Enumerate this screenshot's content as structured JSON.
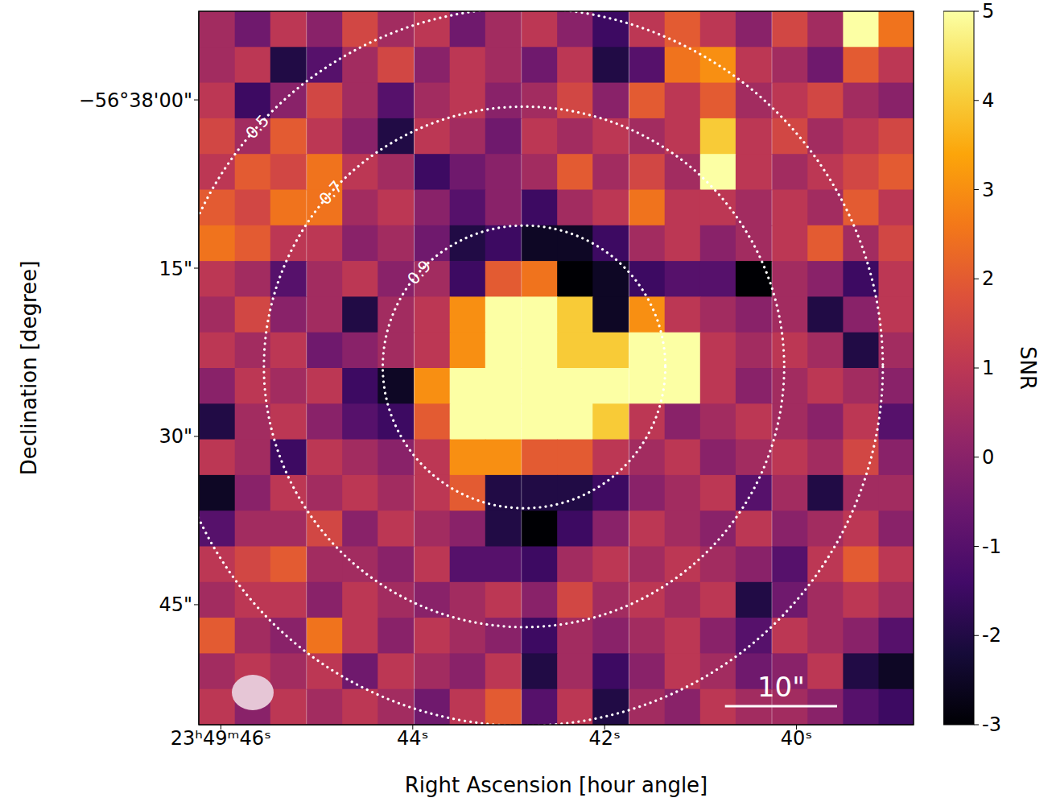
{
  "chart_data": {
    "type": "heatmap",
    "x_label": "Right Ascension [hour angle]",
    "y_label": "Declination [degree]",
    "color": "inferno",
    "xlim": [
      46.23,
      38.78
    ],
    "ylim": [
      55.7,
      -7.9
    ],
    "xticks": [
      {
        "value": 46,
        "label": "23ʰ49ᵐ46ˢ"
      },
      {
        "value": 44,
        "label": "44ˢ"
      },
      {
        "value": 42,
        "label": "42ˢ"
      },
      {
        "value": 40,
        "label": "40ˢ"
      }
    ],
    "yticks": [
      {
        "value": 0,
        "label": "−56°38'00\""
      },
      {
        "value": 15,
        "label": "15\""
      },
      {
        "value": 30,
        "label": "30\""
      },
      {
        "value": 45,
        "label": "45\""
      }
    ],
    "x": [
      46.04,
      45.67,
      45.3,
      44.92,
      44.55,
      44.18,
      43.8,
      43.43,
      43.06,
      42.68,
      42.31,
      41.94,
      41.56,
      41.19,
      40.82,
      40.45,
      40.07,
      39.7,
      39.33,
      38.96
    ],
    "y": [
      -6.31,
      -3.13,
      0.05,
      3.23,
      6.41,
      9.59,
      12.77,
      15.95,
      19.13,
      22.31,
      25.49,
      28.67,
      31.85,
      35.03,
      38.21,
      41.39,
      44.57,
      47.75,
      50.93,
      54.11
    ],
    "cells": [
      [
        0.5,
        -0.5,
        1,
        0,
        1.5,
        0.5,
        1,
        -0.5,
        0.5,
        1,
        0,
        -1.5,
        1,
        2,
        1,
        0,
        1.5,
        0.5,
        5,
        2.5
      ],
      [
        0.5,
        1,
        -2,
        -1,
        0.5,
        1.5,
        0,
        1,
        0.5,
        -0.5,
        1,
        -2,
        -1,
        2.5,
        3,
        1,
        0.5,
        -0.5,
        2,
        1
      ],
      [
        1,
        -1.5,
        0,
        1.5,
        0.5,
        -1,
        0.5,
        1,
        0,
        0.5,
        1.5,
        0,
        2,
        1,
        2,
        0.5,
        1,
        1.5,
        0.5,
        0
      ],
      [
        1.5,
        0.5,
        2,
        1,
        0,
        -2,
        1,
        0.5,
        -0.5,
        1,
        0.5,
        1,
        0.5,
        1,
        4,
        1,
        1.5,
        0.5,
        1,
        1.5
      ],
      [
        1,
        2,
        1.5,
        2.5,
        1,
        0.5,
        -1.5,
        -0.5,
        0,
        0.5,
        2,
        0.5,
        1.5,
        0.5,
        5,
        1,
        0.5,
        1,
        1.5,
        2
      ],
      [
        2,
        1.5,
        2.5,
        2.5,
        0.5,
        1,
        0,
        -1,
        0,
        -1.5,
        0.5,
        1,
        2.5,
        1,
        1,
        0.5,
        1,
        0.5,
        2,
        1
      ],
      [
        2.5,
        2,
        1,
        1,
        0,
        0.5,
        -0.5,
        -2,
        -1.5,
        -2.5,
        -2.5,
        -1.5,
        0.5,
        1,
        0,
        0.5,
        1,
        2,
        0.5,
        1.5
      ],
      [
        1,
        0.5,
        -1,
        0.5,
        1,
        0,
        0.5,
        -1.5,
        2,
        2.5,
        -3,
        -2.5,
        -1.5,
        -1,
        -1,
        -3,
        0.5,
        0,
        -1.5,
        1
      ],
      [
        0.5,
        1.5,
        0,
        0.5,
        -2,
        0.5,
        1,
        3,
        5,
        5,
        4,
        -2.5,
        3,
        1,
        0.5,
        0,
        0.5,
        -2,
        0,
        1
      ],
      [
        1,
        0.5,
        1,
        -0.5,
        0,
        0.5,
        1,
        3,
        5,
        5,
        4,
        4,
        5,
        5,
        1,
        0.5,
        1,
        0.5,
        -2,
        0.5
      ],
      [
        0,
        1,
        0.5,
        1,
        -1.5,
        -2.5,
        3,
        5,
        5,
        5,
        5,
        5,
        5,
        5,
        1,
        0,
        0.5,
        1,
        0.5,
        0
      ],
      [
        -2,
        0.5,
        1,
        0,
        -1,
        -1.5,
        2,
        5,
        5,
        5,
        5,
        4,
        1,
        0,
        0.5,
        1,
        0.5,
        0,
        1,
        -1
      ],
      [
        1,
        0.5,
        -1.5,
        1,
        0.5,
        0,
        1,
        3,
        3,
        2,
        2,
        1,
        0.5,
        1,
        0,
        0.5,
        1,
        0.5,
        1.5,
        0
      ],
      [
        -2.5,
        0,
        1,
        0.5,
        1,
        0.5,
        1,
        2,
        -2,
        -2,
        -2,
        -1.5,
        0,
        0.5,
        1,
        -1,
        0.5,
        -2,
        0.5,
        0.5
      ],
      [
        -1,
        0.5,
        0.5,
        1.5,
        0,
        1,
        0.5,
        0,
        -2,
        -3,
        -1.5,
        0,
        1,
        0.5,
        0,
        1,
        0,
        0.5,
        1,
        0
      ],
      [
        1,
        1.5,
        2,
        0.5,
        0.5,
        0,
        1,
        -1,
        -1,
        -1.5,
        0.5,
        1,
        0.5,
        1,
        0.5,
        0,
        -1,
        1,
        2,
        1
      ],
      [
        0.5,
        1,
        1,
        0,
        1,
        0.5,
        0,
        0.5,
        1,
        0,
        1.5,
        0.5,
        1,
        0.5,
        1,
        -2,
        -0.5,
        0.5,
        1,
        0.5
      ],
      [
        2,
        0.5,
        0,
        2.5,
        1,
        0,
        1,
        0.5,
        0,
        -1.5,
        0.5,
        0,
        0.5,
        1,
        0,
        -1,
        1,
        0.5,
        0,
        -1
      ],
      [
        0.5,
        1,
        0.5,
        1,
        -0.5,
        1,
        0.5,
        0,
        1,
        -2,
        0.5,
        -1.5,
        0,
        1,
        0.5,
        -0.5,
        0,
        1,
        -2,
        -2.5
      ],
      [
        1,
        0,
        1,
        0.5,
        1,
        0.5,
        -0.5,
        1,
        2,
        -1,
        1,
        -2,
        0.5,
        0,
        1,
        0.5,
        0.5,
        0,
        -1,
        -1.5
      ]
    ],
    "colorbar": {
      "label": "SNR",
      "range": [
        -3,
        5
      ],
      "ticks": [
        -3,
        -2,
        -1,
        0,
        1,
        2,
        3,
        4,
        5
      ]
    },
    "annotations": {
      "beam_response": {
        "center": [
          42.84,
          23.8
        ],
        "levels": [
          0.9,
          0.7,
          0.5
        ],
        "radii": [
          12.6,
          23.2,
          32.0
        ]
      },
      "scale_bar": {
        "label": "10\"",
        "length": 10
      }
    }
  }
}
